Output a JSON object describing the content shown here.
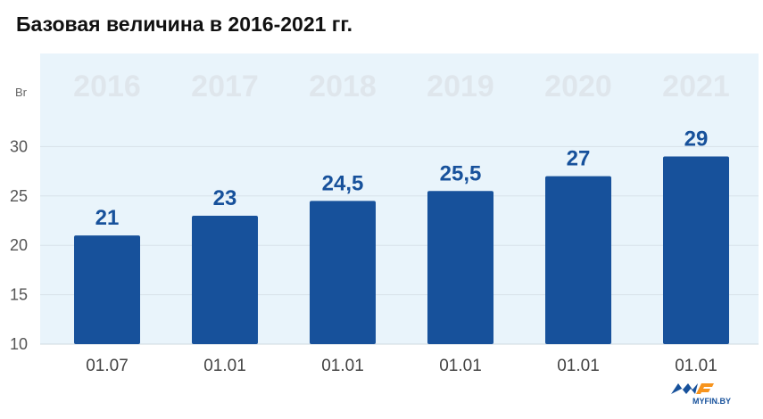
{
  "title": "Базовая величина в 2016-2021 гг.",
  "chart_data": {
    "type": "bar",
    "title": "Базовая величина в 2016-2021 гг.",
    "ylabel": "Br",
    "ylim": [
      10,
      35
    ],
    "yticks": [
      10,
      15,
      20,
      25,
      30
    ],
    "grid": true,
    "years": [
      "2016",
      "2017",
      "2018",
      "2019",
      "2020",
      "2021"
    ],
    "categories": [
      "01.07",
      "01.01",
      "01.01",
      "01.01",
      "01.01",
      "01.01"
    ],
    "values": [
      21,
      23,
      24.5,
      25.5,
      27,
      29
    ],
    "value_labels": [
      "21",
      "23",
      "24,5",
      "25,5",
      "27",
      "29"
    ],
    "bar_color": "#17519b",
    "panel_color": "#e9f4fb"
  },
  "logo": {
    "text": "MYFIN.BY",
    "colors": [
      "#17519b",
      "#f7941d"
    ]
  }
}
